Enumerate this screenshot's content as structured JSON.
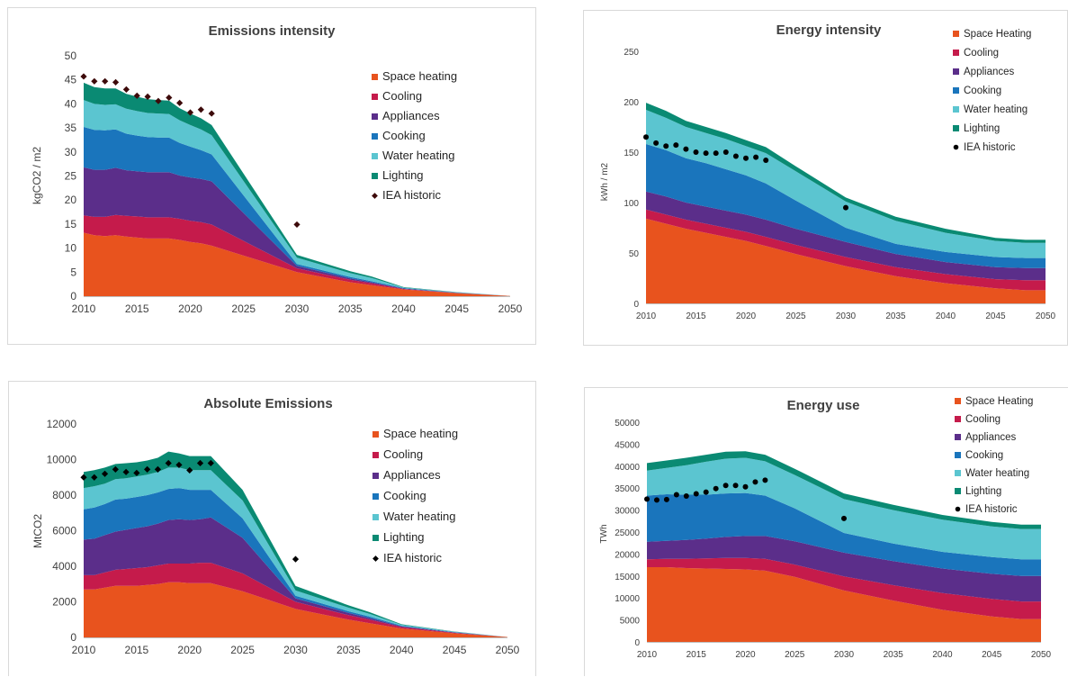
{
  "chart_data": [
    {
      "type": "area",
      "title": "Emissions intensity",
      "ylabel": "kgCO2 / m2",
      "xlabel": "",
      "ylim": [
        0,
        50
      ],
      "yticks": [
        0,
        5,
        10,
        15,
        20,
        25,
        30,
        35,
        40,
        45,
        50
      ],
      "xlim": [
        2010,
        2050
      ],
      "xticks": [
        2010,
        2015,
        2020,
        2025,
        2030,
        2035,
        2040,
        2045,
        2050
      ],
      "legend_position": "right",
      "x": [
        2010,
        2011,
        2012,
        2013,
        2014,
        2015,
        2016,
        2017,
        2018,
        2019,
        2020,
        2021,
        2022,
        2030,
        2035,
        2037,
        2040,
        2045,
        2050
      ],
      "series": [
        {
          "name": "Space heating",
          "color": "#E8531E",
          "values": [
            13.2,
            12.7,
            12.5,
            12.7,
            12.4,
            12.2,
            12.0,
            12.0,
            12.0,
            11.7,
            11.3,
            11.0,
            10.5,
            5.0,
            2.9,
            2.3,
            1.4,
            0.6,
            0.05
          ]
        },
        {
          "name": "Cooling",
          "color": "#C51B4B",
          "values": [
            3.6,
            3.8,
            4.0,
            4.2,
            4.3,
            4.4,
            4.4,
            4.4,
            4.4,
            4.4,
            4.4,
            4.4,
            4.4,
            0.8,
            0.5,
            0.4,
            0.1,
            0.05,
            0.0
          ]
        },
        {
          "name": "Appliances",
          "color": "#5B2E8A",
          "values": [
            10.0,
            9.8,
            9.8,
            9.8,
            9.5,
            9.4,
            9.4,
            9.4,
            9.4,
            9.0,
            9.0,
            9.0,
            9.0,
            0.5,
            0.3,
            0.2,
            0.1,
            0.05,
            0.0
          ]
        },
        {
          "name": "Cooking",
          "color": "#1A75BC",
          "values": [
            8.4,
            8.3,
            8.2,
            8.0,
            7.6,
            7.4,
            7.3,
            7.2,
            7.2,
            6.8,
            6.4,
            6.0,
            5.6,
            0.4,
            0.3,
            0.2,
            0.1,
            0.05,
            0.0
          ]
        },
        {
          "name": "Water heating",
          "color": "#5BC5D0",
          "values": [
            5.6,
            5.4,
            5.3,
            5.2,
            5.2,
            5.1,
            5.0,
            5.0,
            4.9,
            4.7,
            4.5,
            4.3,
            4.0,
            1.3,
            0.8,
            0.7,
            0.1,
            0.05,
            0.0
          ]
        },
        {
          "name": "Lighting",
          "color": "#0A8A73",
          "values": [
            3.6,
            3.5,
            3.4,
            3.3,
            3.1,
            3.0,
            2.9,
            2.8,
            2.8,
            2.5,
            2.4,
            2.3,
            2.1,
            0.6,
            0.4,
            0.3,
            0.1,
            0.05,
            0.0
          ]
        }
      ],
      "markers": {
        "name": "IEA historic",
        "color": "#3D0A0A",
        "shape": "diamond",
        "x": [
          2010,
          2011,
          2012,
          2013,
          2014,
          2015,
          2016,
          2017,
          2018,
          2019,
          2020,
          2021,
          2022,
          2030
        ],
        "values": [
          45.7,
          44.7,
          44.7,
          44.5,
          43.0,
          41.7,
          41.5,
          40.6,
          41.3,
          40.2,
          38.2,
          38.8,
          38.0,
          14.9
        ]
      }
    },
    {
      "type": "area",
      "title": "Energy intensity",
      "ylabel": "kWh / m2",
      "xlabel": "",
      "ylim": [
        0,
        250
      ],
      "yticks": [
        0,
        50,
        100,
        150,
        200,
        250
      ],
      "xlim": [
        2010,
        2050
      ],
      "xticks": [
        2010,
        2015,
        2020,
        2025,
        2030,
        2035,
        2040,
        2045,
        2050
      ],
      "legend_position": "top-right",
      "x": [
        2010,
        2012,
        2014,
        2016,
        2018,
        2020,
        2022,
        2025,
        2030,
        2035,
        2040,
        2045,
        2048,
        2050
      ],
      "series": [
        {
          "name": "Space Heating",
          "color": "#E8531E",
          "values": [
            84,
            79,
            74,
            70,
            66,
            62,
            57,
            49,
            37,
            27,
            20,
            15,
            13,
            13
          ]
        },
        {
          "name": "Cooling",
          "color": "#C51B4B",
          "values": [
            9,
            9,
            9,
            9,
            9,
            9,
            9,
            9,
            9,
            9,
            9,
            9,
            10,
            10
          ]
        },
        {
          "name": "Appliances",
          "color": "#5B2E8A",
          "values": [
            18,
            18,
            17,
            17,
            17,
            17,
            17,
            16,
            15,
            13,
            12,
            12,
            12,
            12
          ]
        },
        {
          "name": "Cooking",
          "color": "#1A75BC",
          "values": [
            47,
            46,
            44,
            43,
            41,
            39,
            36,
            28,
            14,
            10,
            10,
            10,
            10,
            10
          ]
        },
        {
          "name": "Water heating",
          "color": "#5BC5D0",
          "values": [
            34,
            32,
            31,
            30,
            30,
            29,
            30,
            29,
            26,
            23,
            19,
            16,
            15,
            15
          ]
        },
        {
          "name": "Lighting",
          "color": "#0A8A73",
          "values": [
            7,
            7,
            6,
            6,
            6,
            6,
            6,
            5,
            4,
            4,
            4,
            3,
            3,
            3
          ]
        }
      ],
      "markers": {
        "name": "IEA historic",
        "color": "#000000",
        "shape": "circle",
        "x": [
          2010,
          2011,
          2012,
          2013,
          2014,
          2015,
          2016,
          2017,
          2018,
          2019,
          2020,
          2021,
          2022,
          2030
        ],
        "values": [
          165,
          159,
          156,
          157,
          153,
          150,
          149,
          149,
          150,
          146,
          144,
          145,
          142,
          95
        ]
      }
    },
    {
      "type": "area",
      "title": "Absolute Emissions",
      "ylabel": "MtCO2",
      "xlabel": "",
      "ylim": [
        0,
        12000
      ],
      "yticks": [
        0,
        2000,
        4000,
        6000,
        8000,
        10000,
        12000
      ],
      "xlim": [
        2010,
        2050
      ],
      "xticks": [
        2010,
        2015,
        2020,
        2025,
        2030,
        2035,
        2040,
        2045,
        2050
      ],
      "legend_position": "right",
      "x": [
        2010,
        2011,
        2012,
        2013,
        2014,
        2015,
        2016,
        2017,
        2018,
        2019,
        2020,
        2021,
        2022,
        2025,
        2030,
        2035,
        2037,
        2040,
        2045,
        2050
      ],
      "series": [
        {
          "name": "Space heating",
          "color": "#E8531E",
          "values": [
            2700,
            2700,
            2800,
            2900,
            2900,
            2900,
            2950,
            3000,
            3100,
            3100,
            3050,
            3050,
            3050,
            2600,
            1600,
            1000,
            800,
            500,
            230,
            20
          ]
        },
        {
          "name": "Cooling",
          "color": "#C51B4B",
          "values": [
            800,
            800,
            850,
            900,
            950,
            1000,
            1000,
            1050,
            1050,
            1050,
            1100,
            1150,
            1150,
            1000,
            400,
            250,
            200,
            80,
            30,
            0
          ]
        },
        {
          "name": "Appliances",
          "color": "#5B2E8A",
          "values": [
            2000,
            2050,
            2100,
            2150,
            2200,
            2250,
            2300,
            2350,
            2450,
            2500,
            2450,
            2450,
            2550,
            2000,
            200,
            120,
            90,
            40,
            20,
            0
          ]
        },
        {
          "name": "Cooking",
          "color": "#1A75BC",
          "values": [
            1700,
            1750,
            1750,
            1800,
            1750,
            1750,
            1750,
            1750,
            1750,
            1750,
            1700,
            1650,
            1550,
            1100,
            140,
            100,
            80,
            40,
            20,
            0
          ]
        },
        {
          "name": "Water heating",
          "color": "#5BC5D0",
          "values": [
            1200,
            1200,
            1150,
            1150,
            1150,
            1150,
            1150,
            1150,
            1200,
            1150,
            1100,
            1100,
            1100,
            1000,
            300,
            200,
            150,
            50,
            20,
            0
          ]
        },
        {
          "name": "Lighting",
          "color": "#0A8A73",
          "values": [
            900,
            900,
            900,
            850,
            850,
            800,
            800,
            800,
            900,
            800,
            800,
            800,
            800,
            600,
            250,
            130,
            100,
            30,
            10,
            0
          ]
        }
      ],
      "markers": {
        "name": "IEA historic",
        "color": "#000000",
        "shape": "diamond",
        "x": [
          2010,
          2011,
          2012,
          2013,
          2014,
          2015,
          2016,
          2017,
          2018,
          2019,
          2020,
          2021,
          2022,
          2030
        ],
        "values": [
          9000,
          9000,
          9200,
          9450,
          9300,
          9250,
          9450,
          9450,
          9800,
          9700,
          9400,
          9800,
          9800,
          4400
        ]
      }
    },
    {
      "type": "area",
      "title": "Energy use",
      "ylabel": "TWh",
      "xlabel": "",
      "ylim": [
        0,
        50000
      ],
      "yticks": [
        0,
        5000,
        10000,
        15000,
        20000,
        25000,
        30000,
        35000,
        40000,
        45000,
        50000
      ],
      "xlim": [
        2010,
        2050
      ],
      "xticks": [
        2010,
        2015,
        2020,
        2025,
        2030,
        2035,
        2040,
        2045,
        2050
      ],
      "legend_position": "top-right",
      "x": [
        2010,
        2012,
        2014,
        2016,
        2018,
        2020,
        2022,
        2025,
        2030,
        2035,
        2040,
        2045,
        2048,
        2050
      ],
      "series": [
        {
          "name": "Space Heating",
          "color": "#E8531E",
          "values": [
            17000,
            17000,
            16800,
            16700,
            16600,
            16500,
            16200,
            14800,
            11700,
            9400,
            7300,
            5800,
            5200,
            5200
          ]
        },
        {
          "name": "Cooling",
          "color": "#C51B4B",
          "values": [
            1800,
            1900,
            2100,
            2300,
            2500,
            2600,
            2700,
            2800,
            3200,
            3500,
            3800,
            4000,
            4000,
            4000
          ]
        },
        {
          "name": "Appliances",
          "color": "#5B2E8A",
          "values": [
            4000,
            4100,
            4300,
            4500,
            4800,
            5000,
            5200,
            5300,
            5400,
            5500,
            5600,
            5700,
            5800,
            5800
          ]
        },
        {
          "name": "Cooking",
          "color": "#1A75BC",
          "values": [
            10500,
            10600,
            10300,
            10000,
            9900,
            9800,
            9200,
            7500,
            4500,
            4000,
            3800,
            3800,
            3800,
            3800
          ]
        },
        {
          "name": "Water heating",
          "color": "#5BC5D0",
          "values": [
            5700,
            6000,
            6700,
            7500,
            7900,
            8000,
            7800,
            7600,
            7700,
            7600,
            7300,
            7000,
            6900,
            6900
          ]
        },
        {
          "name": "Lighting",
          "color": "#0A8A73",
          "values": [
            1700,
            1700,
            1700,
            1600,
            1600,
            1500,
            1500,
            1400,
            1300,
            1200,
            1100,
            1000,
            1000,
            1000
          ]
        }
      ],
      "markers": {
        "name": "IEA historic",
        "color": "#000000",
        "shape": "circle",
        "x": [
          2010,
          2011,
          2012,
          2013,
          2014,
          2015,
          2016,
          2017,
          2018,
          2019,
          2020,
          2021,
          2022,
          2030
        ],
        "values": [
          32500,
          32300,
          32400,
          33500,
          33200,
          33700,
          34100,
          34900,
          35600,
          35600,
          35300,
          36400,
          36800,
          28100
        ]
      }
    }
  ]
}
